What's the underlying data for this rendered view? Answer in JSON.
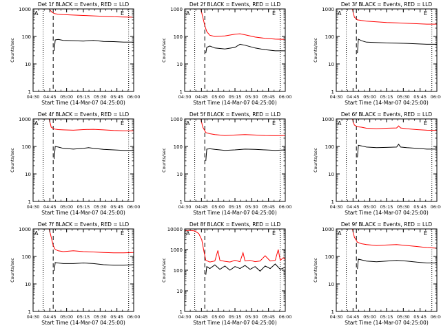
{
  "figure": {
    "xlabel": "Start Time (14-Mar-07 04:25:00)",
    "ylabel": "Counts/sec",
    "x_ticks": [
      "04:30",
      "04:45",
      "05:00",
      "05:15",
      "05:30",
      "05:45",
      "06:00"
    ],
    "y_ticks": [
      "1",
      "10",
      "100",
      "1000"
    ],
    "y_ticks_det8": [
      "1",
      "10",
      "100",
      "1000",
      "10000"
    ],
    "colors": {
      "events": "#000000",
      "lld": "#ff0000",
      "axes": "#000000"
    },
    "corner_labels": {
      "left": "A",
      "right": "E"
    }
  },
  "chart_data": [
    {
      "type": "line",
      "title": "Det 1f BLACK = Events, RED = LLD",
      "x_unit": "minutes after 04:25",
      "xlim": [
        0,
        100
      ],
      "ylim": [
        1,
        1000
      ],
      "yscale": "log",
      "dotted_lines": [
        10,
        95
      ],
      "dashed_line": 20,
      "series": [
        {
          "name": "Events",
          "color": "#000000",
          "x": [
            21,
            22,
            25,
            30,
            40,
            50,
            60,
            70,
            80,
            90,
            100
          ],
          "y": [
            30,
            75,
            78,
            72,
            70,
            68,
            72,
            66,
            65,
            62,
            62
          ]
        },
        {
          "name": "LLD",
          "color": "#ff0000",
          "x": [
            16,
            17,
            19,
            21,
            25,
            30,
            40,
            50,
            60,
            70,
            80,
            90,
            100
          ],
          "y": [
            1000,
            900,
            750,
            680,
            640,
            620,
            600,
            580,
            560,
            540,
            520,
            510,
            500
          ]
        }
      ]
    },
    {
      "type": "line",
      "title": "Det 2f BLACK = Events, RED = LLD",
      "x_unit": "minutes after 04:25",
      "xlim": [
        0,
        100
      ],
      "ylim": [
        1,
        1000
      ],
      "yscale": "log",
      "dotted_lines": [
        10,
        95
      ],
      "dashed_line": 20,
      "series": [
        {
          "name": "Events",
          "color": "#000000",
          "x": [
            21,
            22,
            25,
            30,
            40,
            50,
            55,
            60,
            70,
            80,
            90,
            100
          ],
          "y": [
            25,
            40,
            45,
            38,
            35,
            40,
            52,
            48,
            38,
            33,
            30,
            30
          ]
        },
        {
          "name": "LLD",
          "color": "#ff0000",
          "x": [
            16,
            18,
            20,
            22,
            25,
            30,
            40,
            50,
            55,
            60,
            70,
            80,
            90,
            100
          ],
          "y": [
            1000,
            500,
            250,
            150,
            110,
            100,
            105,
            120,
            125,
            115,
            95,
            85,
            80,
            78
          ]
        }
      ]
    },
    {
      "type": "line",
      "title": "Det 3f BLACK = Events, RED = LLD",
      "x_unit": "minutes after 04:25",
      "xlim": [
        0,
        100
      ],
      "ylim": [
        1,
        1000
      ],
      "yscale": "log",
      "dotted_lines": [
        10,
        95
      ],
      "dashed_line": 20,
      "series": [
        {
          "name": "Events",
          "color": "#000000",
          "x": [
            21,
            22,
            25,
            30,
            40,
            50,
            60,
            70,
            80,
            90,
            100
          ],
          "y": [
            25,
            80,
            70,
            62,
            60,
            58,
            57,
            56,
            54,
            52,
            52
          ]
        },
        {
          "name": "LLD",
          "color": "#ff0000",
          "x": [
            16,
            18,
            21,
            25,
            30,
            40,
            50,
            60,
            70,
            80,
            90,
            100
          ],
          "y": [
            1000,
            500,
            400,
            380,
            360,
            340,
            320,
            310,
            300,
            290,
            280,
            280
          ]
        }
      ]
    },
    {
      "type": "line",
      "title": "Det 4f BLACK = Events, RED = LLD",
      "x_unit": "minutes after 04:25",
      "xlim": [
        0,
        100
      ],
      "ylim": [
        1,
        1000
      ],
      "yscale": "log",
      "dotted_lines": [
        10,
        95
      ],
      "dashed_line": 20,
      "series": [
        {
          "name": "Events",
          "color": "#000000",
          "x": [
            21,
            22,
            25,
            30,
            40,
            50,
            55,
            60,
            70,
            80,
            90,
            100
          ],
          "y": [
            35,
            100,
            95,
            85,
            80,
            85,
            90,
            85,
            78,
            75,
            72,
            72
          ]
        },
        {
          "name": "LLD",
          "color": "#ff0000",
          "x": [
            16,
            18,
            21,
            25,
            30,
            40,
            50,
            60,
            70,
            80,
            90,
            100
          ],
          "y": [
            1000,
            500,
            430,
            410,
            400,
            390,
            410,
            420,
            400,
            380,
            370,
            370
          ]
        }
      ]
    },
    {
      "type": "line",
      "title": "Det 5f BLACK = Events, RED = LLD",
      "x_unit": "minutes after 04:25",
      "xlim": [
        0,
        100
      ],
      "ylim": [
        1,
        1000
      ],
      "yscale": "log",
      "dotted_lines": [
        10,
        95
      ],
      "dashed_line": 20,
      "series": [
        {
          "name": "Events",
          "color": "#000000",
          "x": [
            21,
            22,
            25,
            30,
            40,
            50,
            60,
            70,
            80,
            90,
            100
          ],
          "y": [
            30,
            80,
            82,
            78,
            72,
            75,
            80,
            78,
            75,
            72,
            75
          ]
        },
        {
          "name": "LLD",
          "color": "#ff0000",
          "x": [
            16,
            18,
            21,
            25,
            30,
            40,
            50,
            60,
            70,
            80,
            90,
            100
          ],
          "y": [
            1000,
            500,
            320,
            290,
            270,
            250,
            260,
            270,
            260,
            250,
            245,
            250
          ]
        }
      ]
    },
    {
      "type": "line",
      "title": "Det 6f BLACK = Events, RED = LLD",
      "x_unit": "minutes after 04:25",
      "xlim": [
        0,
        100
      ],
      "ylim": [
        1,
        1000
      ],
      "yscale": "log",
      "dotted_lines": [
        10,
        95
      ],
      "dashed_line": 20,
      "series": [
        {
          "name": "Events",
          "color": "#000000",
          "x": [
            21,
            22,
            25,
            30,
            40,
            50,
            60,
            62,
            64,
            70,
            80,
            90,
            100
          ],
          "y": [
            40,
            110,
            105,
            95,
            90,
            92,
            95,
            120,
            95,
            90,
            85,
            80,
            80
          ]
        },
        {
          "name": "LLD",
          "color": "#ff0000",
          "x": [
            16,
            18,
            21,
            25,
            30,
            40,
            50,
            60,
            62,
            64,
            70,
            80,
            90,
            100
          ],
          "y": [
            1000,
            600,
            520,
            500,
            460,
            440,
            460,
            470,
            560,
            470,
            440,
            410,
            390,
            380
          ]
        }
      ]
    },
    {
      "type": "line",
      "title": "Det 7f BLACK = Events, RED = LLD",
      "x_unit": "minutes after 04:25",
      "xlim": [
        0,
        100
      ],
      "ylim": [
        1,
        1000
      ],
      "yscale": "log",
      "dotted_lines": [
        10,
        95
      ],
      "dashed_line": 20,
      "series": [
        {
          "name": "Events",
          "color": "#000000",
          "x": [
            21,
            22,
            25,
            30,
            40,
            50,
            60,
            70,
            80,
            90,
            100
          ],
          "y": [
            30,
            60,
            58,
            55,
            55,
            58,
            55,
            50,
            48,
            48,
            50
          ]
        },
        {
          "name": "LLD",
          "color": "#ff0000",
          "x": [
            16,
            18,
            20,
            22,
            25,
            30,
            40,
            50,
            60,
            70,
            80,
            90,
            100
          ],
          "y": [
            1000,
            500,
            250,
            180,
            160,
            150,
            160,
            150,
            145,
            140,
            135,
            135,
            140
          ]
        }
      ]
    },
    {
      "type": "line",
      "title": "Det 8f BLACK = Events, RED = LLD",
      "x_unit": "minutes after 04:25",
      "xlim": [
        0,
        100
      ],
      "ylim": [
        1,
        10000
      ],
      "yscale": "log",
      "dotted_lines": [
        10,
        95
      ],
      "dashed_line": 20,
      "series": [
        {
          "name": "Events",
          "color": "#000000",
          "x": [
            21,
            22,
            25,
            30,
            35,
            40,
            45,
            50,
            55,
            60,
            65,
            70,
            75,
            80,
            85,
            90,
            95,
            100
          ],
          "y": [
            60,
            150,
            120,
            180,
            110,
            160,
            100,
            150,
            120,
            170,
            110,
            150,
            90,
            160,
            120,
            200,
            110,
            140
          ]
        },
        {
          "name": "LLD",
          "color": "#ff0000",
          "x": [
            0,
            5,
            10,
            14,
            17,
            19,
            21,
            25,
            30,
            33,
            35,
            40,
            45,
            50,
            55,
            58,
            60,
            65,
            70,
            75,
            80,
            85,
            90,
            93,
            95,
            98,
            100
          ],
          "y": [
            8000,
            8500,
            8000,
            6000,
            3000,
            900,
            300,
            250,
            280,
            900,
            300,
            270,
            250,
            300,
            260,
            700,
            280,
            300,
            260,
            280,
            500,
            280,
            300,
            1000,
            300,
            400,
            320
          ]
        }
      ]
    },
    {
      "type": "line",
      "title": "Det 9f BLACK = Events, RED = LLD",
      "x_unit": "minutes after 04:25",
      "xlim": [
        0,
        100
      ],
      "ylim": [
        1,
        1000
      ],
      "yscale": "log",
      "dotted_lines": [
        10,
        95
      ],
      "dashed_line": 20,
      "series": [
        {
          "name": "Events",
          "color": "#000000",
          "x": [
            21,
            22,
            25,
            30,
            40,
            50,
            60,
            70,
            80,
            90,
            100
          ],
          "y": [
            35,
            80,
            75,
            68,
            64,
            68,
            72,
            68,
            62,
            58,
            58
          ]
        },
        {
          "name": "LLD",
          "color": "#ff0000",
          "x": [
            16,
            18,
            21,
            25,
            30,
            40,
            50,
            60,
            70,
            80,
            90,
            100
          ],
          "y": [
            1000,
            500,
            330,
            290,
            270,
            250,
            260,
            270,
            250,
            230,
            210,
            200
          ]
        }
      ]
    }
  ]
}
